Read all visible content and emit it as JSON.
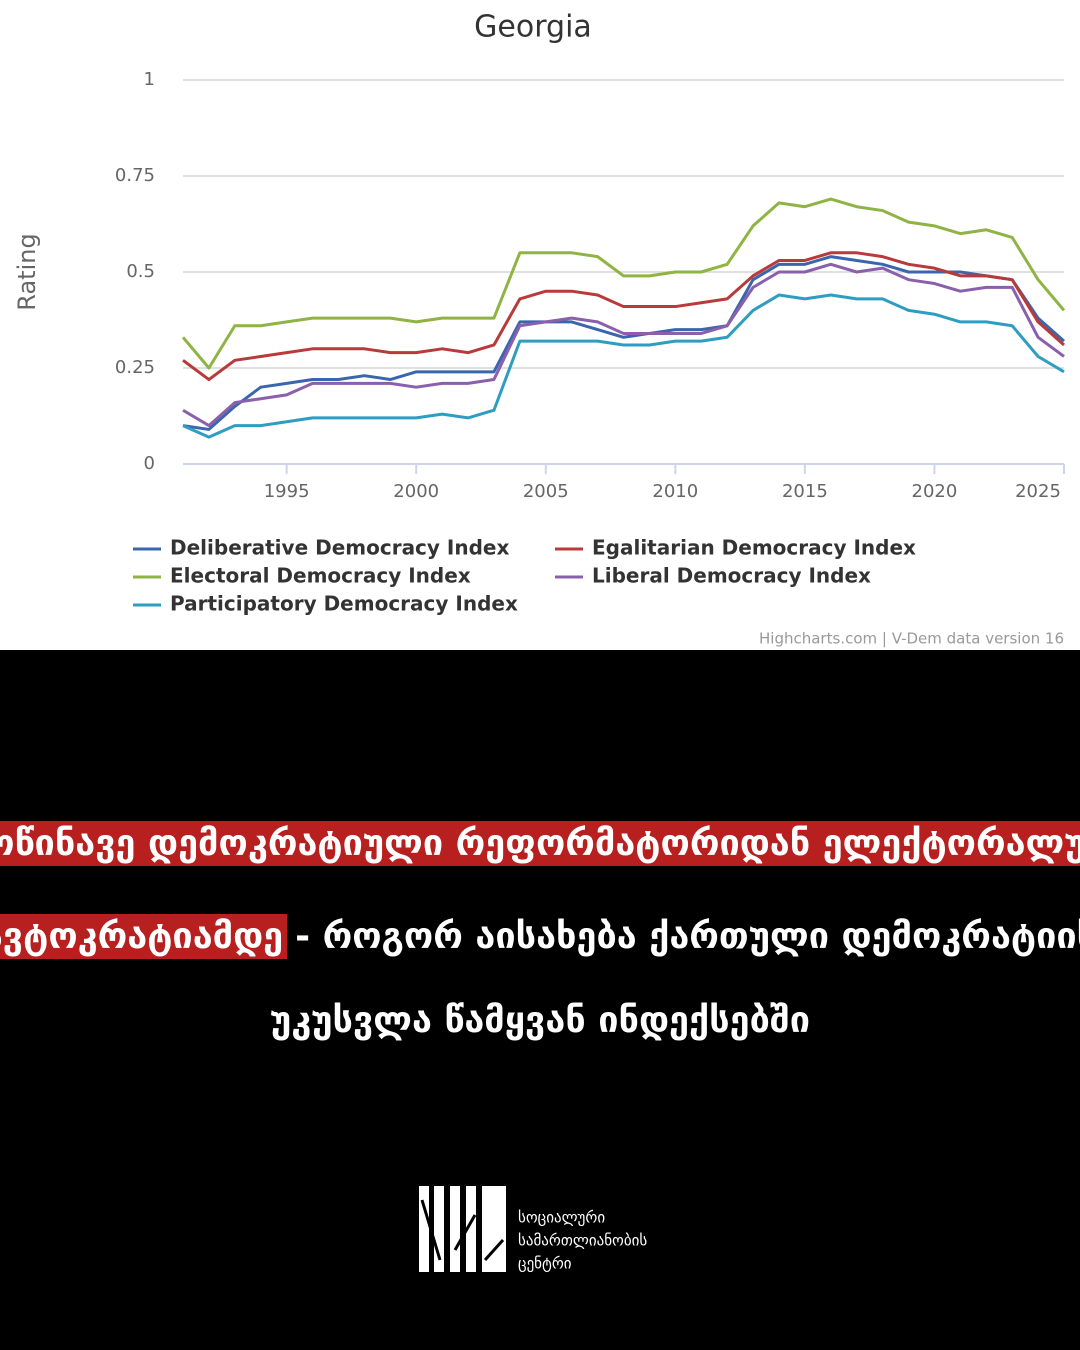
{
  "chart_data": {
    "type": "line",
    "title": "Georgia",
    "ylabel": "Rating",
    "credits": "Highcharts.com | V-Dem data version 16",
    "x": [
      1991,
      1992,
      1993,
      1994,
      1995,
      1996,
      1997,
      1998,
      1999,
      2000,
      2001,
      2002,
      2003,
      2004,
      2005,
      2006,
      2007,
      2008,
      2009,
      2010,
      2011,
      2012,
      2013,
      2014,
      2015,
      2016,
      2017,
      2018,
      2019,
      2020,
      2021,
      2022,
      2023,
      2024,
      2025
    ],
    "xlim": [
      1991,
      2025
    ],
    "xticks": [
      1995,
      2000,
      2005,
      2010,
      2015,
      2020,
      2025
    ],
    "ylim": [
      0,
      1
    ],
    "yticks": [
      0,
      0.25,
      0.5,
      0.75,
      1
    ],
    "grid": true,
    "series": [
      {
        "name": "Deliberative Democracy Index",
        "color": "#3a66ad",
        "values": [
          0.1,
          0.09,
          0.15,
          0.2,
          0.21,
          0.22,
          0.22,
          0.23,
          0.22,
          0.24,
          0.24,
          0.24,
          0.24,
          0.37,
          0.37,
          0.37,
          0.35,
          0.33,
          0.34,
          0.35,
          0.35,
          0.36,
          0.48,
          0.52,
          0.52,
          0.54,
          0.53,
          0.52,
          0.5,
          0.5,
          0.5,
          0.49,
          0.48,
          0.38,
          0.32
        ]
      },
      {
        "name": "Egalitarian Democracy Index",
        "color": "#b83a3a",
        "values": [
          0.27,
          0.22,
          0.27,
          0.28,
          0.29,
          0.3,
          0.3,
          0.3,
          0.29,
          0.29,
          0.3,
          0.29,
          0.31,
          0.43,
          0.45,
          0.45,
          0.44,
          0.41,
          0.41,
          0.41,
          0.42,
          0.43,
          0.49,
          0.53,
          0.53,
          0.55,
          0.55,
          0.54,
          0.52,
          0.51,
          0.49,
          0.49,
          0.48,
          0.37,
          0.31
        ]
      },
      {
        "name": "Electoral Democracy Index",
        "color": "#8fb443",
        "values": [
          0.33,
          0.25,
          0.36,
          0.36,
          0.37,
          0.38,
          0.38,
          0.38,
          0.38,
          0.37,
          0.38,
          0.38,
          0.38,
          0.55,
          0.55,
          0.55,
          0.54,
          0.49,
          0.49,
          0.5,
          0.5,
          0.52,
          0.62,
          0.68,
          0.67,
          0.69,
          0.67,
          0.66,
          0.63,
          0.62,
          0.6,
          0.61,
          0.59,
          0.48,
          0.4
        ]
      },
      {
        "name": "Liberal Democracy Index",
        "color": "#8a5fab",
        "values": [
          0.14,
          0.1,
          0.16,
          0.17,
          0.18,
          0.21,
          0.21,
          0.21,
          0.21,
          0.2,
          0.21,
          0.21,
          0.22,
          0.36,
          0.37,
          0.38,
          0.37,
          0.34,
          0.34,
          0.34,
          0.34,
          0.36,
          0.46,
          0.5,
          0.5,
          0.52,
          0.5,
          0.51,
          0.48,
          0.47,
          0.45,
          0.46,
          0.46,
          0.33,
          0.28
        ]
      },
      {
        "name": "Participatory Democracy Index",
        "color": "#2e9dc2",
        "values": [
          0.1,
          0.07,
          0.1,
          0.1,
          0.11,
          0.12,
          0.12,
          0.12,
          0.12,
          0.12,
          0.13,
          0.12,
          0.14,
          0.32,
          0.32,
          0.32,
          0.32,
          0.31,
          0.31,
          0.32,
          0.32,
          0.33,
          0.4,
          0.44,
          0.43,
          0.44,
          0.43,
          0.43,
          0.4,
          0.39,
          0.37,
          0.37,
          0.36,
          0.28,
          0.24
        ]
      }
    ]
  },
  "headline": {
    "highlight": [
      "მოწინავე დემოკრატიული რეფორმატორიდან ელექტორალურ",
      "ავტოკრატიამდე"
    ],
    "rest": [
      "- როგორ აისახება ქართული დემოკრატიის",
      "უკუსვლა წამყვან ინდექსებში"
    ]
  },
  "logo": {
    "lines": [
      "სოციალური",
      "სამართლიანობის",
      "ცენტრი"
    ]
  }
}
